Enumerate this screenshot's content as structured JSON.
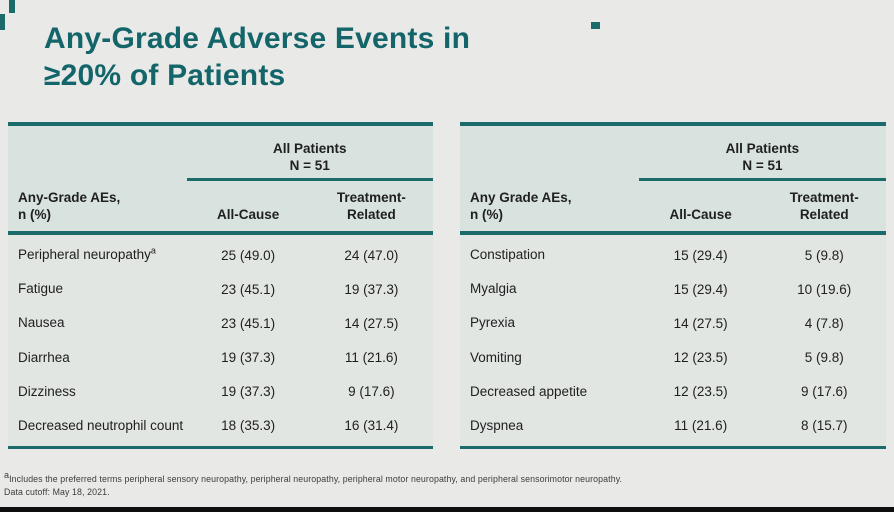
{
  "title": {
    "line1": "Any-Grade Adverse Events in",
    "line2": "≥20% of Patients"
  },
  "colors": {
    "accent_teal": "#1c6b6b",
    "title_teal": "#14656a",
    "header_bg": "#d8e3df",
    "body_bg": "#e2e6e3",
    "slide_bg": "#e9eae8"
  },
  "tables": [
    {
      "group_header": "All Patients",
      "group_subheader": "N = 51",
      "row_header_line1": "Any-Grade AEs,",
      "row_header_line2": "n (%)",
      "col_all_cause": "All-Cause",
      "col_treatment_line1": "Treatment-",
      "col_treatment_line2": "Related",
      "rows": [
        {
          "label": "Peripheral neuropathy",
          "sup": "a",
          "all_cause": "25 (49.0)",
          "treatment_related": "24 (47.0)"
        },
        {
          "label": "Fatigue",
          "all_cause": "23 (45.1)",
          "treatment_related": "19 (37.3)"
        },
        {
          "label": "Nausea",
          "all_cause": "23 (45.1)",
          "treatment_related": "14 (27.5)"
        },
        {
          "label": "Diarrhea",
          "all_cause": "19 (37.3)",
          "treatment_related": "11 (21.6)"
        },
        {
          "label": "Dizziness",
          "all_cause": "19 (37.3)",
          "treatment_related": "9 (17.6)"
        },
        {
          "label": "Decreased neutrophil count",
          "all_cause": "18 (35.3)",
          "treatment_related": "16 (31.4)"
        }
      ]
    },
    {
      "group_header": "All Patients",
      "group_subheader": "N = 51",
      "row_header_line1": "Any Grade AEs,",
      "row_header_line2": "n (%)",
      "col_all_cause": "All-Cause",
      "col_treatment_line1": "Treatment-",
      "col_treatment_line2": "Related",
      "rows": [
        {
          "label": "Constipation",
          "all_cause": "15 (29.4)",
          "treatment_related": "5 (9.8)"
        },
        {
          "label": "Myalgia",
          "all_cause": "15 (29.4)",
          "treatment_related": "10 (19.6)"
        },
        {
          "label": "Pyrexia",
          "all_cause": "14 (27.5)",
          "treatment_related": "4 (7.8)"
        },
        {
          "label": "Vomiting",
          "all_cause": "12 (23.5)",
          "treatment_related": "5 (9.8)"
        },
        {
          "label": "Decreased appetite",
          "all_cause": "12 (23.5)",
          "treatment_related": "9 (17.6)"
        },
        {
          "label": "Dyspnea",
          "all_cause": "11 (21.6)",
          "treatment_related": "8 (15.7)"
        }
      ]
    }
  ],
  "footnote": {
    "sup1": "a",
    "line1": "Includes the preferred terms peripheral sensory neuropathy, peripheral neuropathy, peripheral motor neuropathy, and peripheral sensorimotor neuropathy.",
    "line2": "Data cutoff: May 18, 2021."
  }
}
